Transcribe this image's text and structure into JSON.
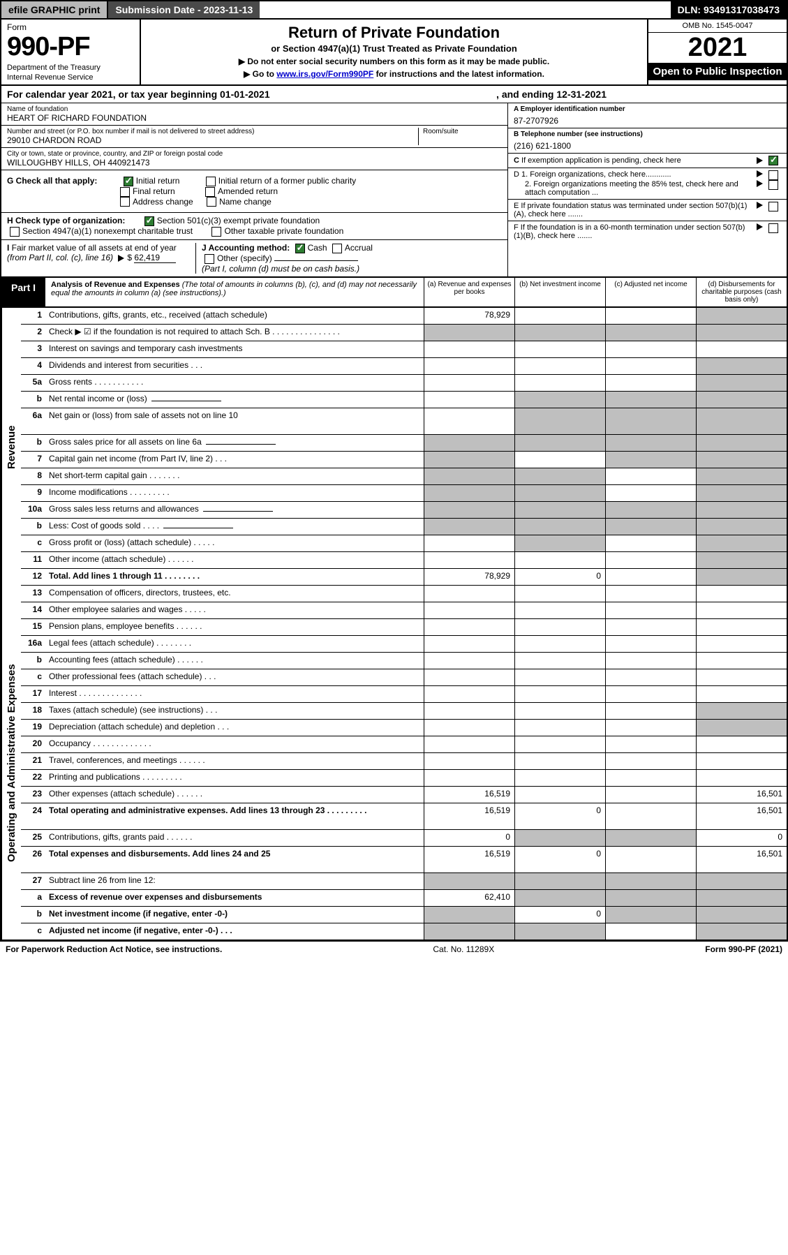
{
  "topbar": {
    "efile": "efile GRAPHIC print",
    "subdate_label": "Submission Date - 2023-11-13",
    "dln": "DLN: 93491317038473"
  },
  "header": {
    "form_word": "Form",
    "form_num": "990-PF",
    "dept1": "Department of the Treasury",
    "dept2": "Internal Revenue Service",
    "title": "Return of Private Foundation",
    "subtitle": "or Section 4947(a)(1) Trust Treated as Private Foundation",
    "note1": "▶ Do not enter social security numbers on this form as it may be made public.",
    "note2_pre": "▶ Go to ",
    "note2_link": "www.irs.gov/Form990PF",
    "note2_post": " for instructions and the latest information.",
    "omb": "OMB No. 1545-0047",
    "year": "2021",
    "open": "Open to Public Inspection"
  },
  "calyear": {
    "text": "For calendar year 2021, or tax year beginning 01-01-2021",
    "end": ", and ending 12-31-2021"
  },
  "info": {
    "name_lbl": "Name of foundation",
    "name": "HEART OF RICHARD FOUNDATION",
    "addr_lbl": "Number and street (or P.O. box number if mail is not delivered to street address)",
    "addr": "29010 CHARDON ROAD",
    "room_lbl": "Room/suite",
    "city_lbl": "City or town, state or province, country, and ZIP or foreign postal code",
    "city": "WILLOUGHBY HILLS, OH  440921473",
    "a_lbl": "A Employer identification number",
    "a_val": "87-2707926",
    "b_lbl": "B Telephone number (see instructions)",
    "b_val": "(216) 621-1800",
    "c_lbl": "C If exemption application is pending, check here",
    "d1": "D 1. Foreign organizations, check here............",
    "d2": "2. Foreign organizations meeting the 85% test, check here and attach computation ...",
    "e": "E  If private foundation status was terminated under section 507(b)(1)(A), check here .......",
    "f": "F  If the foundation is in a 60-month termination under section 507(b)(1)(B), check here ......."
  },
  "g": {
    "label": "G Check all that apply:",
    "opts": [
      "Initial return",
      "Initial return of a former public charity",
      "Final return",
      "Amended return",
      "Address change",
      "Name change"
    ]
  },
  "h": {
    "label": "H Check type of organization:",
    "o1": "Section 501(c)(3) exempt private foundation",
    "o2": "Section 4947(a)(1) nonexempt charitable trust",
    "o3": "Other taxable private foundation"
  },
  "i": {
    "label": "I Fair market value of all assets at end of year (from Part II, col. (c), line 16)",
    "val": "62,419"
  },
  "j": {
    "label": "J Accounting method:",
    "cash": "Cash",
    "accrual": "Accrual",
    "other": "Other (specify)",
    "note": "(Part I, column (d) must be on cash basis.)"
  },
  "part1": {
    "tab": "Part I",
    "title": "Analysis of Revenue and Expenses",
    "note": "(The total of amounts in columns (b), (c), and (d) may not necessarily equal the amounts in column (a) (see instructions).)",
    "cols": {
      "a": "(a)   Revenue and expenses per books",
      "b": "(b)   Net investment income",
      "c": "(c)   Adjusted net income",
      "d": "(d)   Disbursements for charitable purposes (cash basis only)"
    }
  },
  "side": {
    "rev": "Revenue",
    "exp": "Operating and Administrative Expenses"
  },
  "rows": [
    {
      "n": "1",
      "d": "Contributions, gifts, grants, etc., received (attach schedule)",
      "a": "78,929",
      "bg": false,
      "cg": false,
      "dg": true
    },
    {
      "n": "2",
      "d": "Check ▶ ☑ if the foundation is not required to attach Sch. B    .   .   .   .   .   .   .   .   .   .   .   .   .   .   .",
      "bold": false,
      "allgrey": true
    },
    {
      "n": "3",
      "d": "Interest on savings and temporary cash investments"
    },
    {
      "n": "4",
      "d": "Dividends and interest from securities    .   .   .",
      "dg": true
    },
    {
      "n": "5a",
      "d": "Gross rents    .   .   .   .   .   .   .   .   .   .   .",
      "dg": true
    },
    {
      "n": "b",
      "d": "Net rental income or (loss)",
      "line": true,
      "bcdgrey": true
    },
    {
      "n": "6a",
      "d": "Net gain or (loss) from sale of assets not on line 10",
      "bcdgrey": true,
      "tall": true
    },
    {
      "n": "b",
      "d": "Gross sales price for all assets on line 6a",
      "line": true,
      "allgrey": true
    },
    {
      "n": "7",
      "d": "Capital gain net income (from Part IV, line 2)    .   .   .",
      "ag": true,
      "cg": true,
      "dg": true
    },
    {
      "n": "8",
      "d": "Net short-term capital gain   .   .   .   .   .   .   .",
      "ag": true,
      "bg": true,
      "dg": true
    },
    {
      "n": "9",
      "d": "Income modifications   .   .   .   .   .   .   .   .   .",
      "ag": true,
      "bg": true,
      "dg": true
    },
    {
      "n": "10a",
      "d": "Gross sales less returns and allowances",
      "line": true,
      "allgrey": true
    },
    {
      "n": "b",
      "d": "Less: Cost of goods sold    .   .   .   .",
      "line": true,
      "allgrey": true
    },
    {
      "n": "c",
      "d": "Gross profit or (loss) (attach schedule)    .   .   .   .   .",
      "bg": true,
      "dg": true
    },
    {
      "n": "11",
      "d": "Other income (attach schedule)    .   .   .   .   .   .",
      "dg": true
    },
    {
      "n": "12",
      "d": "Total. Add lines 1 through 11    .   .   .   .   .   .   .   .",
      "bold": true,
      "a": "78,929",
      "b": "0",
      "dg": true
    },
    {
      "n": "13",
      "d": "Compensation of officers, directors, trustees, etc.",
      "sect": "exp"
    },
    {
      "n": "14",
      "d": "Other employee salaries and wages   .   .   .   .   ."
    },
    {
      "n": "15",
      "d": "Pension plans, employee benefits   .   .   .   .   .   ."
    },
    {
      "n": "16a",
      "d": "Legal fees (attach schedule)   .   .   .   .   .   .   .   ."
    },
    {
      "n": "b",
      "d": "Accounting fees (attach schedule)   .   .   .   .   .   ."
    },
    {
      "n": "c",
      "d": "Other professional fees (attach schedule)    .   .   ."
    },
    {
      "n": "17",
      "d": "Interest   .   .   .   .   .   .   .   .   .   .   .   .   .   ."
    },
    {
      "n": "18",
      "d": "Taxes (attach schedule) (see instructions)    .   .   .",
      "dg": true
    },
    {
      "n": "19",
      "d": "Depreciation (attach schedule) and depletion   .   .   .",
      "dg": true
    },
    {
      "n": "20",
      "d": "Occupancy   .   .   .   .   .   .   .   .   .   .   .   .   ."
    },
    {
      "n": "21",
      "d": "Travel, conferences, and meetings   .   .   .   .   .   ."
    },
    {
      "n": "22",
      "d": "Printing and publications   .   .   .   .   .   .   .   .   ."
    },
    {
      "n": "23",
      "d": "Other expenses (attach schedule)   .   .   .   .   .   .",
      "a": "16,519",
      "d4": "16,501"
    },
    {
      "n": "24",
      "d": "Total operating and administrative expenses. Add lines 13 through 23   .   .   .   .   .   .   .   .   .",
      "bold": true,
      "a": "16,519",
      "b": "0",
      "d4": "16,501",
      "tall": true
    },
    {
      "n": "25",
      "d": "Contributions, gifts, grants paid    .   .   .   .   .   .",
      "a": "0",
      "bg": true,
      "cg": true,
      "d4": "0"
    },
    {
      "n": "26",
      "d": "Total expenses and disbursements. Add lines 24 and 25",
      "bold": true,
      "a": "16,519",
      "b": "0",
      "d4": "16,501",
      "tall": true
    },
    {
      "n": "27",
      "d": "Subtract line 26 from line 12:",
      "sect": "none",
      "bcdgrey2": true
    },
    {
      "n": "a",
      "d": "Excess of revenue over expenses and disbursements",
      "bold": true,
      "a": "62,410",
      "bg": true,
      "cg": true,
      "dg": true
    },
    {
      "n": "b",
      "d": "Net investment income (if negative, enter -0-)",
      "bold": true,
      "ag": true,
      "b": "0",
      "cg": true,
      "dg": true
    },
    {
      "n": "c",
      "d": "Adjusted net income (if negative, enter -0-)   .   .   .",
      "bold": true,
      "ag": true,
      "bg": true,
      "dg": true
    }
  ],
  "footer": {
    "left": "For Paperwork Reduction Act Notice, see instructions.",
    "mid": "Cat. No. 11289X",
    "right": "Form 990-PF (2021)"
  }
}
